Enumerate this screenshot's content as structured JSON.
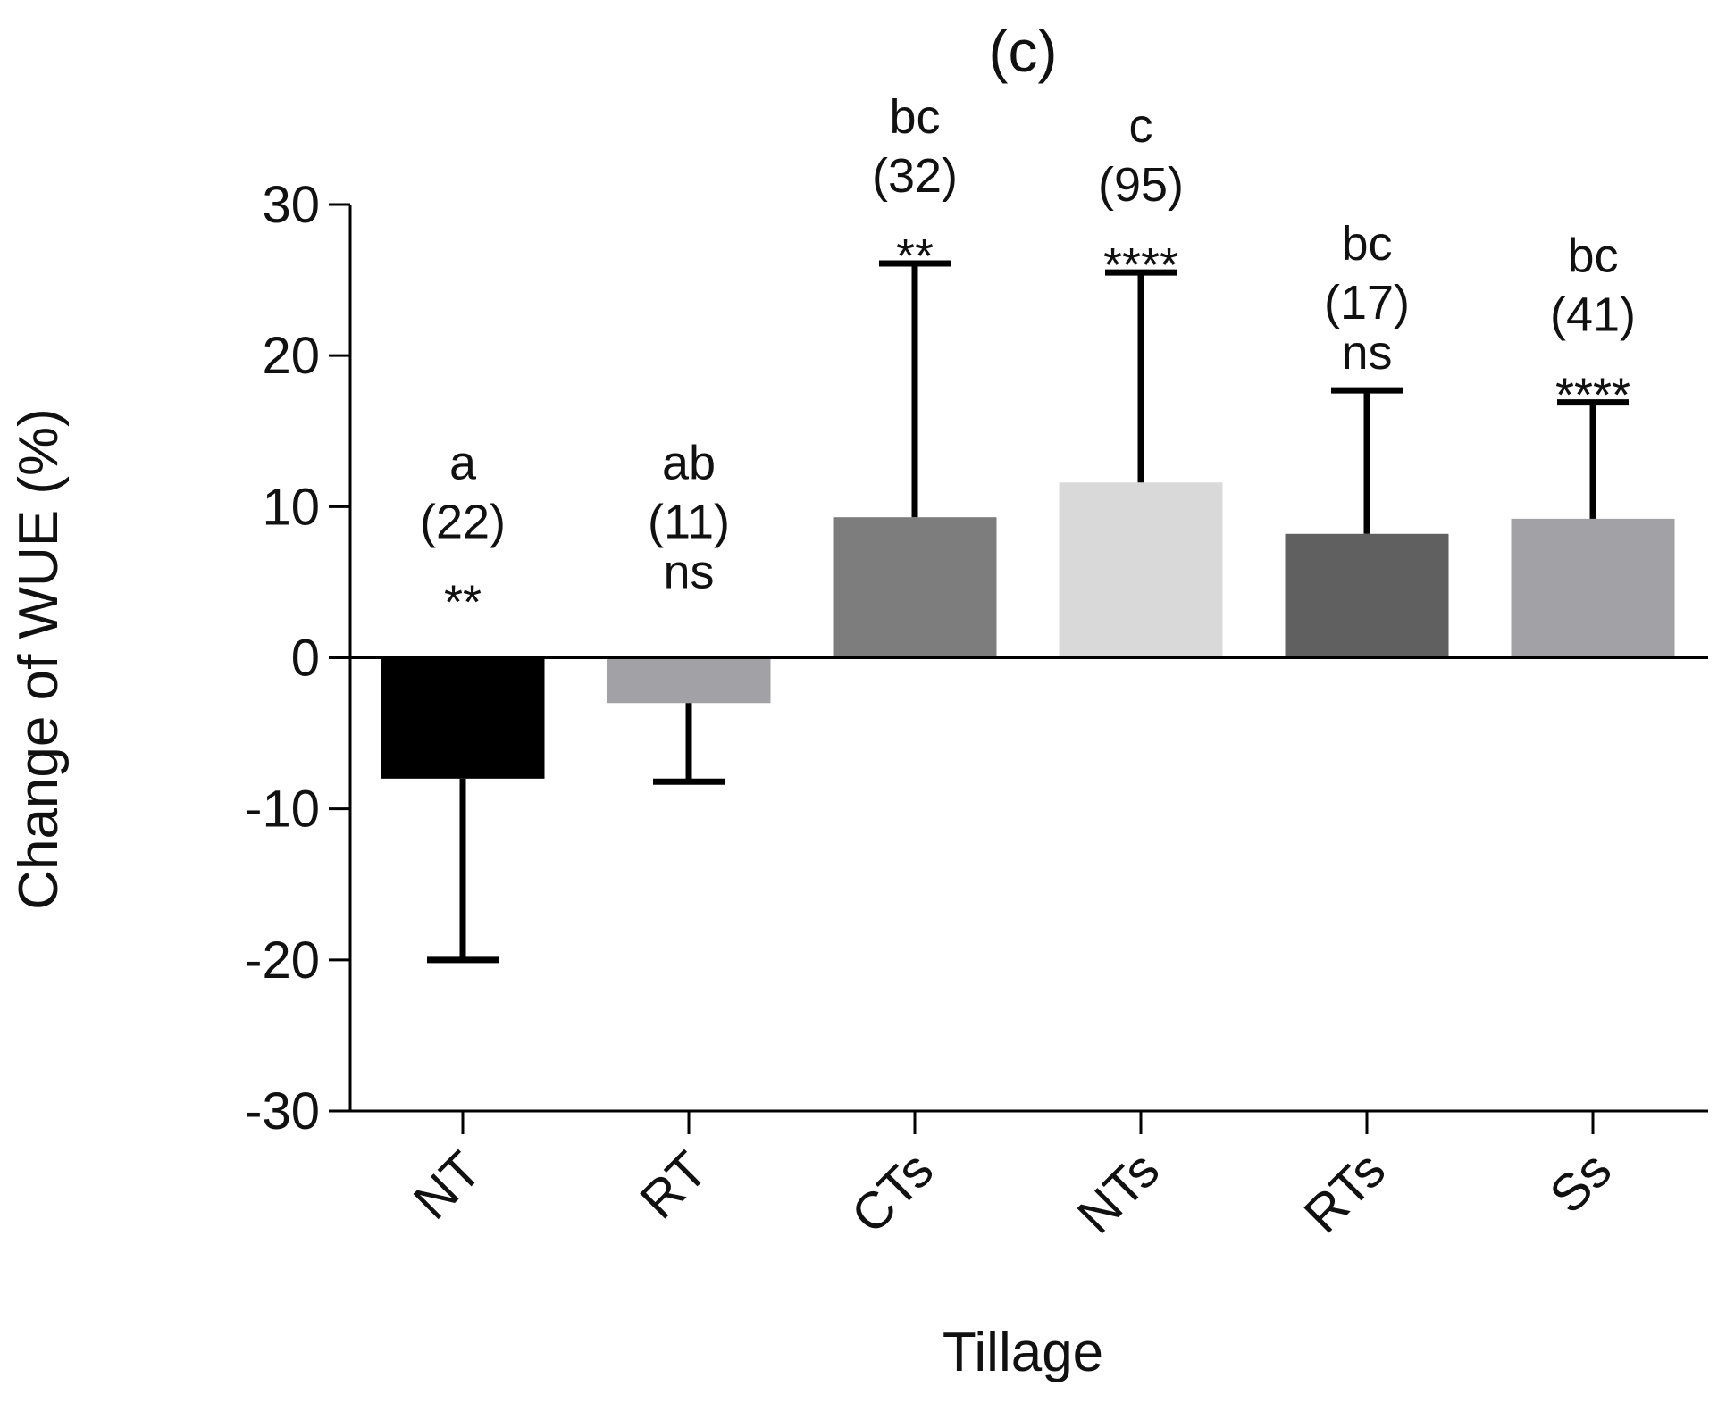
{
  "chart_data": {
    "type": "bar",
    "title": "(c)",
    "xlabel": "Tillage",
    "ylabel": "Change of WUE (%)",
    "ylim": [
      -30,
      30
    ],
    "yticks": [
      30,
      20,
      10,
      0,
      -10,
      -20,
      -30
    ],
    "ytick_labels": [
      "30",
      "20",
      "10",
      "0",
      "-10",
      "-20",
      "-30"
    ],
    "grid": false,
    "categories": [
      "NT",
      "RT",
      "CTs",
      "NTs",
      "RTs",
      "Ss"
    ],
    "values": [
      -8,
      -3,
      9.3,
      11.6,
      8.2,
      9.2
    ],
    "error_bars": [
      -20,
      -8.2,
      26.1,
      25.5,
      17.7,
      16.9
    ],
    "bar_colors": [
      "#000000",
      "#a2a1a6",
      "#7d7d7d",
      "#d9d9d9",
      "#606060",
      "#a2a1a6"
    ],
    "annotations": [
      {
        "letter": "a",
        "n": "(22)",
        "sig": "**"
      },
      {
        "letter": "ab",
        "n": "(11)",
        "sig": "ns"
      },
      {
        "letter": "bc",
        "n": "(32)",
        "sig": "**"
      },
      {
        "letter": "c",
        "n": "(95)",
        "sig": "****"
      },
      {
        "letter": "bc",
        "n": "(17)",
        "sig": "ns"
      },
      {
        "letter": "bc",
        "n": "(41)",
        "sig": "****"
      }
    ]
  }
}
